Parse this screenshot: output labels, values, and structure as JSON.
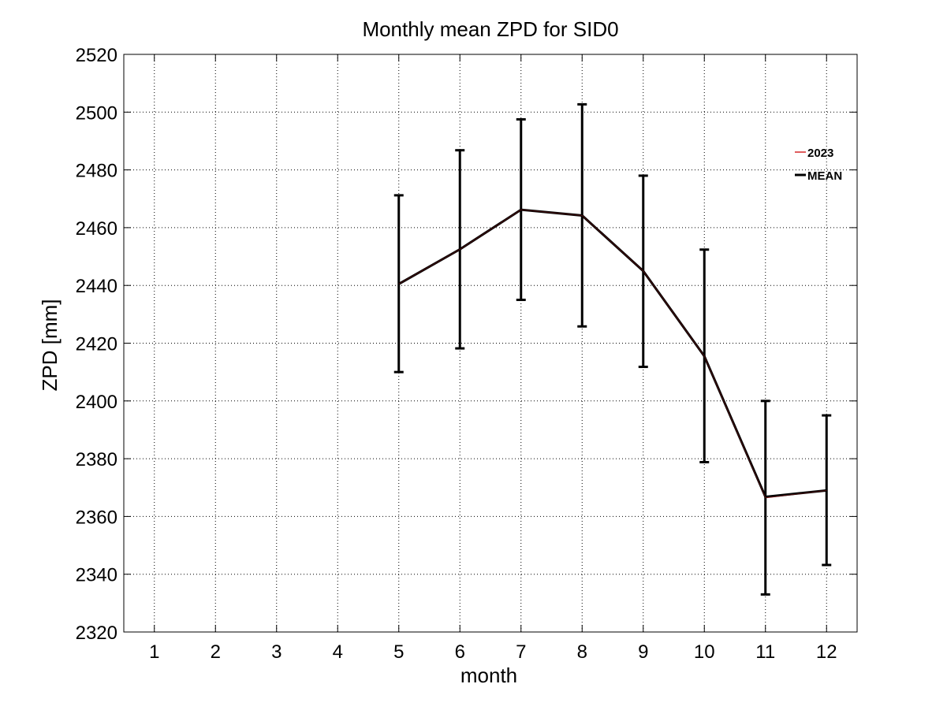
{
  "chart_data": {
    "type": "line",
    "title": "Monthly mean ZPD for SID0",
    "xlabel": "month",
    "ylabel": "ZPD [mm]",
    "x": [
      1,
      2,
      3,
      4,
      5,
      6,
      7,
      8,
      9,
      10,
      11,
      12
    ],
    "xlim": [
      0.5,
      12.5
    ],
    "ylim": [
      2320,
      2520
    ],
    "yticks": [
      2320,
      2340,
      2360,
      2380,
      2400,
      2420,
      2440,
      2460,
      2480,
      2500,
      2520
    ],
    "grid": true,
    "legend_position": "top-right",
    "series": [
      {
        "name": "2023",
        "color": "#d62728",
        "points": [
          {
            "x": 5,
            "y": 2440.5
          },
          {
            "x": 6,
            "y": 2452.5
          },
          {
            "x": 7,
            "y": 2466.2
          },
          {
            "x": 8,
            "y": 2464.2
          },
          {
            "x": 9,
            "y": 2445.0
          },
          {
            "x": 10,
            "y": 2415.5
          },
          {
            "x": 11,
            "y": 2366.5
          },
          {
            "x": 12,
            "y": 2369.0
          }
        ]
      },
      {
        "name": "MEAN",
        "color": "#000000",
        "points": [
          {
            "x": 5,
            "y": 2440.5,
            "err_low": 2410.0,
            "err_high": 2471.2
          },
          {
            "x": 6,
            "y": 2452.5,
            "err_low": 2418.2,
            "err_high": 2486.8
          },
          {
            "x": 7,
            "y": 2466.2,
            "err_low": 2435.0,
            "err_high": 2497.5
          },
          {
            "x": 8,
            "y": 2464.2,
            "err_low": 2425.8,
            "err_high": 2502.7
          },
          {
            "x": 9,
            "y": 2445.0,
            "err_low": 2411.8,
            "err_high": 2478.0
          },
          {
            "x": 10,
            "y": 2415.5,
            "err_low": 2378.8,
            "err_high": 2452.4
          },
          {
            "x": 11,
            "y": 2366.8,
            "err_low": 2333.0,
            "err_high": 2400.0
          },
          {
            "x": 12,
            "y": 2369.0,
            "err_low": 2343.2,
            "err_high": 2395.0
          }
        ]
      }
    ]
  }
}
